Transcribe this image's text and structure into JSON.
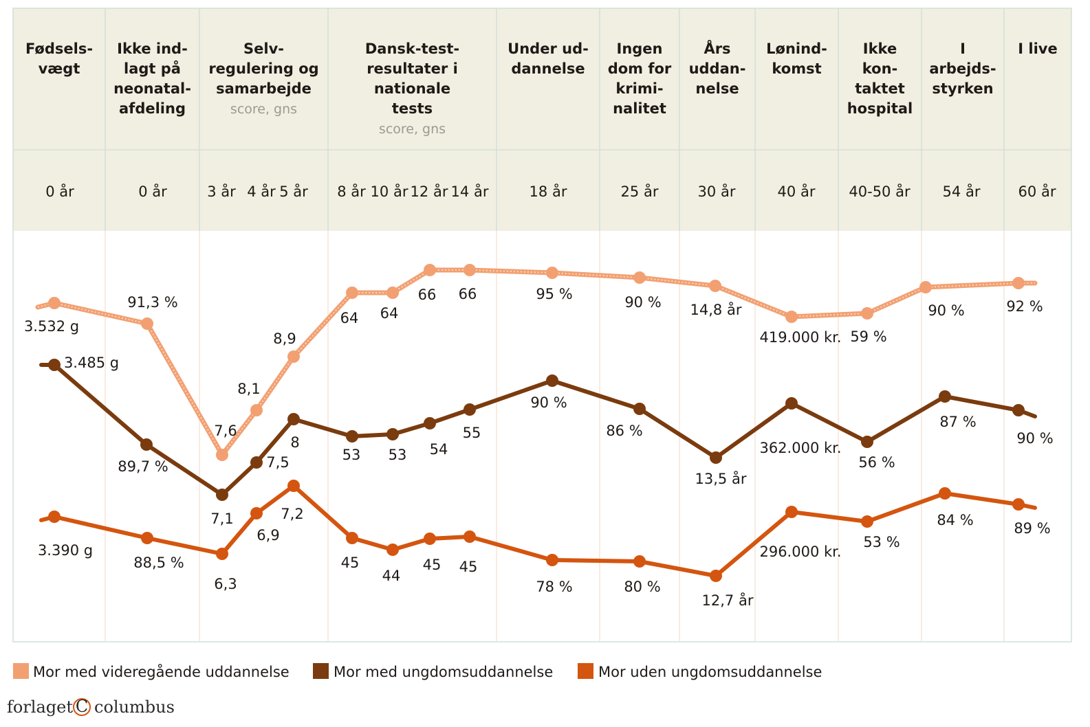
{
  "chart_data": {
    "type": "line",
    "title": "",
    "categories": [
      {
        "lines": [
          "Fødsels-",
          "vægt"
        ],
        "sub": [],
        "ages": [
          "0 år"
        ]
      },
      {
        "lines": [
          "Ikke ind-",
          "lagt på",
          "neonatal-",
          "afdeling"
        ],
        "sub": [],
        "ages": [
          "0 år"
        ]
      },
      {
        "lines": [
          "Selv-",
          "regulering og",
          "samarbejde"
        ],
        "sub": [
          "score, gns"
        ],
        "ages": [
          "3 år",
          "4 år",
          "5 år"
        ]
      },
      {
        "lines": [
          "Dansk-test-",
          "resultater i",
          "nationale",
          "tests"
        ],
        "sub": [
          "score, gns"
        ],
        "ages": [
          "8 år",
          "10 år",
          "12 år",
          "14 år"
        ]
      },
      {
        "lines": [
          "Under ud-",
          "dannelse"
        ],
        "sub": [],
        "ages": [
          "18 år"
        ]
      },
      {
        "lines": [
          "Ingen",
          "dom for",
          "krimi-",
          "nalitet"
        ],
        "sub": [],
        "ages": [
          "25 år"
        ]
      },
      {
        "lines": [
          "Års",
          "uddan-",
          "nelse"
        ],
        "sub": [],
        "ages": [
          "30 år"
        ]
      },
      {
        "lines": [
          "Lønind-",
          "komst"
        ],
        "sub": [],
        "ages": [
          "40 år"
        ]
      },
      {
        "lines": [
          "Ikke",
          "kon-",
          "taktet",
          "hospital"
        ],
        "sub": [],
        "ages": [
          "40-50 år"
        ]
      },
      {
        "lines": [
          "I",
          "arbejds-",
          "styrken"
        ],
        "sub": [],
        "ages": [
          "54 år"
        ]
      },
      {
        "lines": [
          "I live"
        ],
        "sub": [],
        "ages": [
          "60 år"
        ]
      }
    ],
    "series": [
      {
        "name": "Mor med videregående uddannelse",
        "color": "#f2a072",
        "labels": [
          "3.532 g",
          "91,3 %",
          "7,6",
          "8,1",
          "8,9",
          "64",
          "64",
          "66",
          "66",
          "95 %",
          "90 %",
          "14,8 år",
          "419.000 kr.",
          "59 %",
          "90 %",
          "92 %"
        ]
      },
      {
        "name": "Mor med ungdomsuddannelse",
        "color": "#7a3b0e",
        "labels": [
          "3.485 g",
          "89,7 %",
          "7,1",
          "7,5",
          "8",
          "53",
          "53",
          "54",
          "55",
          "90 %",
          "86 %",
          "13,5 år",
          "362.000 kr.",
          "56 %",
          "87 %",
          "90 %"
        ]
      },
      {
        "name": "Mor uden ungdomsuddannelse",
        "color": "#d4550f",
        "labels": [
          "3.390 g",
          "88,5 %",
          "6,3",
          "6,9",
          "7,2",
          "45",
          "44",
          "45",
          "45",
          "78 %",
          "80 %",
          "12,7 år",
          "296.000 kr.",
          "53 %",
          "84 %",
          "89 %"
        ]
      }
    ],
    "legend_position": "bottom-left"
  },
  "footer": {
    "brand_left": "forlaget",
    "brand_symbol": "C",
    "brand_right": "columbus"
  }
}
